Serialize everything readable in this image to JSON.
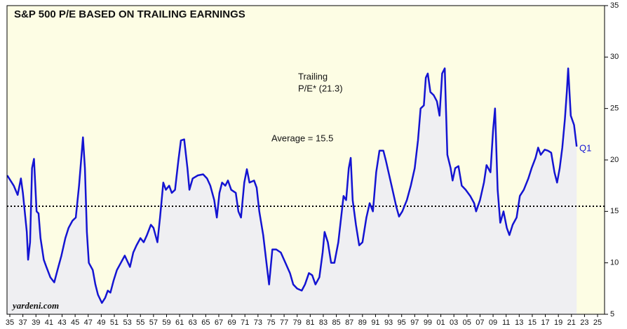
{
  "chart_data": {
    "type": "line",
    "title": "S&P 500 P/E BASED ON TRAILING EARNINGS",
    "annotations": [
      "Trailing",
      "P/E* (21.3)",
      "Average = 15.5",
      "Q1",
      "yardeni.com"
    ],
    "average": 15.5,
    "xlim": [
      1934.57,
      2026.07
    ],
    "ylim": [
      5,
      35
    ],
    "yticks": [
      5,
      10,
      15,
      20,
      25,
      30,
      35
    ],
    "xticks": [
      {
        "value": 1935,
        "label": "35"
      },
      {
        "value": 1937,
        "label": "37"
      },
      {
        "value": 1939,
        "label": "39"
      },
      {
        "value": 1941,
        "label": "41"
      },
      {
        "value": 1943,
        "label": "43"
      },
      {
        "value": 1945,
        "label": "45"
      },
      {
        "value": 1947,
        "label": "47"
      },
      {
        "value": 1949,
        "label": "49"
      },
      {
        "value": 1951,
        "label": "51"
      },
      {
        "value": 1953,
        "label": "53"
      },
      {
        "value": 1955,
        "label": "55"
      },
      {
        "value": 1957,
        "label": "57"
      },
      {
        "value": 1959,
        "label": "59"
      },
      {
        "value": 1961,
        "label": "61"
      },
      {
        "value": 1963,
        "label": "63"
      },
      {
        "value": 1965,
        "label": "65"
      },
      {
        "value": 1967,
        "label": "67"
      },
      {
        "value": 1969,
        "label": "69"
      },
      {
        "value": 1971,
        "label": "71"
      },
      {
        "value": 1973,
        "label": "73"
      },
      {
        "value": 1975,
        "label": "75"
      },
      {
        "value": 1977,
        "label": "77"
      },
      {
        "value": 1979,
        "label": "79"
      },
      {
        "value": 1981,
        "label": "81"
      },
      {
        "value": 1983,
        "label": "83"
      },
      {
        "value": 1985,
        "label": "85"
      },
      {
        "value": 1987,
        "label": "87"
      },
      {
        "value": 1989,
        "label": "89"
      },
      {
        "value": 1991,
        "label": "91"
      },
      {
        "value": 1993,
        "label": "93"
      },
      {
        "value": 1995,
        "label": "95"
      },
      {
        "value": 1997,
        "label": "97"
      },
      {
        "value": 1999,
        "label": "99"
      },
      {
        "value": 2001,
        "label": "01"
      },
      {
        "value": 2003,
        "label": "03"
      },
      {
        "value": 2005,
        "label": "05"
      },
      {
        "value": 2007,
        "label": "07"
      },
      {
        "value": 2009,
        "label": "09"
      },
      {
        "value": 2011,
        "label": "11"
      },
      {
        "value": 2013,
        "label": "13"
      },
      {
        "value": 2015,
        "label": "15"
      },
      {
        "value": 2017,
        "label": "17"
      },
      {
        "value": 2019,
        "label": "19"
      },
      {
        "value": 2021,
        "label": "21"
      },
      {
        "value": 2023,
        "label": "23"
      },
      {
        "value": 2025,
        "label": "25"
      }
    ],
    "series": [
      {
        "color": "#1414d2",
        "x": [
          1934.6,
          1935.6,
          1936.2,
          1936.7,
          1937.0,
          1937.6,
          1937.8,
          1938.1,
          1938.4,
          1938.7,
          1939.1,
          1939.4,
          1939.7,
          1940.2,
          1940.6,
          1941.2,
          1941.8,
          1942.3,
          1942.9,
          1943.5,
          1944.0,
          1944.6,
          1945.1,
          1945.6,
          1946.2,
          1946.5,
          1946.8,
          1947.1,
          1947.7,
          1948.1,
          1948.5,
          1949.1,
          1949.6,
          1950.0,
          1950.4,
          1950.9,
          1951.4,
          1952.0,
          1952.6,
          1953.4,
          1953.9,
          1954.4,
          1955.0,
          1955.5,
          1956.0,
          1956.6,
          1957.0,
          1957.6,
          1958.0,
          1958.5,
          1958.9,
          1959.4,
          1959.8,
          1960.3,
          1960.8,
          1961.2,
          1961.7,
          1962.2,
          1962.5,
          1963.0,
          1963.8,
          1964.6,
          1965.2,
          1965.7,
          1966.3,
          1966.7,
          1967.1,
          1967.5,
          1968.0,
          1968.4,
          1968.9,
          1969.6,
          1970.0,
          1970.4,
          1970.9,
          1971.3,
          1971.7,
          1972.4,
          1972.8,
          1973.2,
          1973.8,
          1974.3,
          1974.7,
          1975.2,
          1975.8,
          1976.5,
          1977.2,
          1977.9,
          1978.4,
          1979.0,
          1979.7,
          1980.2,
          1980.8,
          1981.3,
          1981.8,
          1982.4,
          1982.9,
          1983.2,
          1983.7,
          1984.2,
          1984.7,
          1985.3,
          1985.8,
          1986.1,
          1986.5,
          1986.9,
          1987.2,
          1987.5,
          1988.0,
          1988.5,
          1989.0,
          1989.6,
          1990.1,
          1990.6,
          1991.1,
          1991.6,
          1992.2,
          1992.6,
          1993.1,
          1993.6,
          1994.2,
          1994.6,
          1995.1,
          1995.8,
          1996.4,
          1997.0,
          1997.5,
          1997.9,
          1998.4,
          1998.7,
          1999.0,
          1999.4,
          1999.9,
          2000.4,
          2000.8,
          2001.2,
          2001.6,
          2002.0,
          2002.5,
          2002.8,
          2003.2,
          2003.7,
          2004.2,
          2004.8,
          2005.5,
          2006.1,
          2006.4,
          2007.0,
          2007.6,
          2008.0,
          2008.6,
          2009.0,
          2009.3,
          2009.7,
          2010.1,
          2010.6,
          2011.1,
          2011.5,
          2012.0,
          2012.6,
          2013.1,
          2013.7,
          2014.4,
          2014.9,
          2015.5,
          2015.9,
          2016.3,
          2016.9,
          2017.4,
          2017.9,
          2018.4,
          2018.8,
          2019.2,
          2019.6,
          2020.0,
          2020.3,
          2020.5,
          2020.9,
          2021.4,
          2021.8
        ],
        "values": [
          18.5,
          17.5,
          16.6,
          18.2,
          16.8,
          13,
          10.3,
          12,
          19.2,
          20.1,
          15,
          14.8,
          12.4,
          10.3,
          9.6,
          8.6,
          8.1,
          9.3,
          10.7,
          12.4,
          13.4,
          14.1,
          14.4,
          17.5,
          22.2,
          19.2,
          13,
          10,
          9.3,
          7.9,
          6.9,
          6.1,
          6.6,
          7.3,
          7.1,
          8.3,
          9.3,
          10,
          10.7,
          9.6,
          11,
          11.7,
          12.4,
          12,
          12.7,
          13.7,
          13.4,
          12,
          14.4,
          17.8,
          17.1,
          17.5,
          16.8,
          17.1,
          19.9,
          21.9,
          22,
          19.2,
          17.1,
          18.2,
          18.5,
          18.6,
          18.2,
          17.5,
          16.1,
          14.4,
          16.8,
          17.8,
          17.5,
          18,
          17.1,
          16.8,
          15,
          14.4,
          17.8,
          19.1,
          17.8,
          18,
          17.3,
          15,
          12.7,
          10,
          7.9,
          11.3,
          11.3,
          11,
          10,
          9,
          7.9,
          7.5,
          7.3,
          7.9,
          9,
          8.8,
          7.9,
          8.6,
          11,
          13,
          12,
          10,
          10,
          12,
          14.8,
          16.5,
          16.1,
          19.2,
          20.2,
          16.1,
          13.7,
          11.7,
          12,
          14.4,
          15.8,
          15,
          18.8,
          20.9,
          20.9,
          19.9,
          18.5,
          17.1,
          15.4,
          14.5,
          15,
          16.1,
          17.5,
          19.2,
          21.9,
          25,
          25.3,
          28,
          28.4,
          26.6,
          26.3,
          25.7,
          24.3,
          28.4,
          28.9,
          20.5,
          19.2,
          18,
          19.2,
          19.4,
          17.5,
          17.1,
          16.5,
          15.8,
          15,
          16.1,
          17.8,
          19.5,
          18.8,
          22.9,
          25,
          17.1,
          13.9,
          15,
          13.4,
          12.7,
          13.7,
          14.4,
          16.5,
          17.1,
          18.2,
          19.2,
          20.2,
          21.2,
          20.5,
          21,
          20.9,
          20.7,
          18.8,
          17.8,
          19.2,
          21.2,
          24,
          26.7,
          28.9,
          24.3,
          23.4,
          21.3
        ]
      }
    ]
  }
}
